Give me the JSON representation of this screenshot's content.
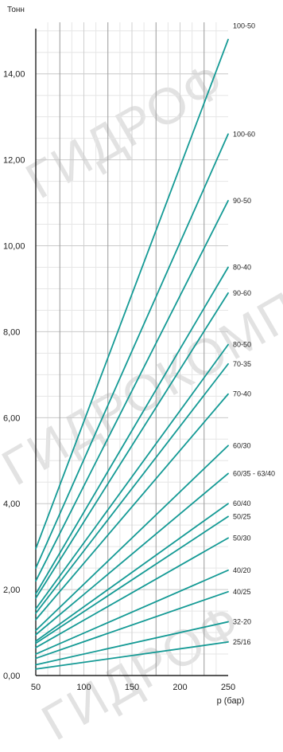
{
  "watermark": {
    "line1": "ГИДРОФ",
    "line2": "ГИДРОКОМПОНЕНТЫ",
    "line3": "ГИДРОФ"
  },
  "chart_data": {
    "type": "line",
    "title": "",
    "ylabel": "Тонн",
    "xlabel": "p (бар)",
    "xlim": [
      50,
      250
    ],
    "ylim": [
      0,
      15.2
    ],
    "x_ticks": [
      50,
      100,
      150,
      200,
      250
    ],
    "x_tick_labels": [
      "50",
      "100",
      "150",
      "200",
      "250"
    ],
    "y_ticks": [
      0,
      2,
      4,
      6,
      8,
      10,
      12,
      14
    ],
    "y_tick_labels": [
      "0,00",
      "2,00",
      "4,00",
      "6,00",
      "8,00",
      "10,00",
      "12,00",
      "14,00"
    ],
    "grid": true,
    "line_color": "#149a95",
    "series": [
      {
        "name": "100-50",
        "x": [
          50,
          250
        ],
        "y": [
          2.95,
          14.8
        ]
      },
      {
        "name": "100-60",
        "x": [
          50,
          250
        ],
        "y": [
          2.5,
          12.6
        ]
      },
      {
        "name": "90-50",
        "x": [
          50,
          250
        ],
        "y": [
          2.2,
          11.05
        ]
      },
      {
        "name": "80-40",
        "x": [
          50,
          250
        ],
        "y": [
          1.9,
          9.5
        ]
      },
      {
        "name": "90-60",
        "x": [
          50,
          250
        ],
        "y": [
          1.8,
          8.9
        ]
      },
      {
        "name": "80-50",
        "x": [
          50,
          250
        ],
        "y": [
          1.55,
          7.7
        ]
      },
      {
        "name": "70-35",
        "x": [
          50,
          250
        ],
        "y": [
          1.45,
          7.25
        ]
      },
      {
        "name": "70-40",
        "x": [
          50,
          250
        ],
        "y": [
          1.3,
          6.55
        ]
      },
      {
        "name": "60/30",
        "x": [
          50,
          250
        ],
        "y": [
          1.05,
          5.35
        ]
      },
      {
        "name": "60/35 - 63/40",
        "x": [
          50,
          250
        ],
        "y": [
          0.95,
          4.7
        ]
      },
      {
        "name": "60/40",
        "x": [
          50,
          250
        ],
        "y": [
          0.8,
          4.0
        ]
      },
      {
        "name": "50/25",
        "x": [
          50,
          250
        ],
        "y": [
          0.75,
          3.7
        ]
      },
      {
        "name": "50/30",
        "x": [
          50,
          250
        ],
        "y": [
          0.65,
          3.2
        ]
      },
      {
        "name": "40/20",
        "x": [
          50,
          250
        ],
        "y": [
          0.5,
          2.45
        ]
      },
      {
        "name": "40/25",
        "x": [
          50,
          250
        ],
        "y": [
          0.4,
          1.95
        ]
      },
      {
        "name": "32-20",
        "x": [
          50,
          250
        ],
        "y": [
          0.25,
          1.25
        ]
      },
      {
        "name": "25/16",
        "x": [
          50,
          250
        ],
        "y": [
          0.15,
          0.78
        ]
      }
    ],
    "label_positions_y": [
      15.12,
      12.6,
      11.05,
      9.5,
      8.9,
      7.7,
      7.25,
      6.55,
      5.35,
      4.7,
      4.0,
      3.7,
      3.2,
      2.45,
      1.95,
      1.25,
      0.78
    ]
  }
}
